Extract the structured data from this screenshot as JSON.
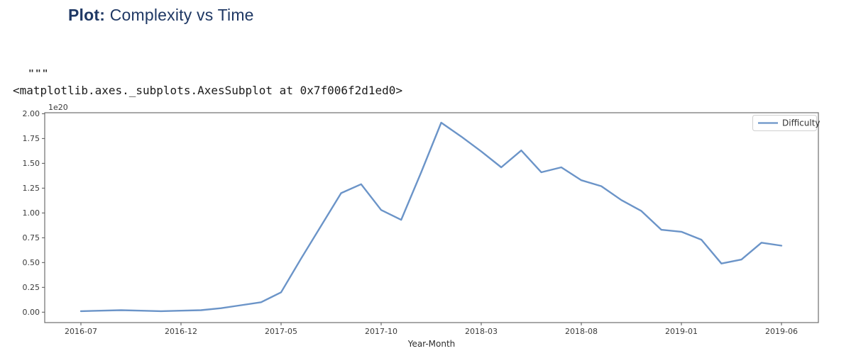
{
  "header": {
    "title_prefix": "Plot:",
    "title_rest": " Complexity vs Time",
    "title_color": "#1f3864"
  },
  "code": {
    "docstring_quotes": "\"\"\"",
    "repr_line": "<matplotlib.axes._subplots.AxesSubplot at 0x7f006f2d1ed0>"
  },
  "chart_data": {
    "type": "line",
    "title": "",
    "xlabel": "Year-Month",
    "ylabel": "",
    "offset_label": "1e20",
    "grid": false,
    "legend": {
      "entries": [
        "Difficulty"
      ],
      "position": "upper right"
    },
    "line_color": "#6b94c8",
    "ylim": [
      -0.105,
      2.01
    ],
    "y_tick_values": [
      0.0,
      0.25,
      0.5,
      0.75,
      1.0,
      1.25,
      1.5,
      1.75,
      2.0
    ],
    "y_tick_labels": [
      "0.00",
      "0.25",
      "0.50",
      "0.75",
      "1.00",
      "1.25",
      "1.50",
      "1.75",
      "2.00"
    ],
    "x_tick_labels": [
      "2016-07",
      "2016-12",
      "2017-05",
      "2017-10",
      "2018-03",
      "2018-08",
      "2019-01",
      "2019-06"
    ],
    "x_tick_every": 5,
    "x": [
      "2016-07",
      "2016-08",
      "2016-09",
      "2016-10",
      "2016-11",
      "2016-12",
      "2017-01",
      "2017-02",
      "2017-03",
      "2017-04",
      "2017-05",
      "2017-06",
      "2017-07",
      "2017-08",
      "2017-09",
      "2017-10",
      "2017-11",
      "2017-12",
      "2018-01",
      "2018-02",
      "2018-03",
      "2018-04",
      "2018-05",
      "2018-06",
      "2018-07",
      "2018-08",
      "2018-09",
      "2018-10",
      "2018-11",
      "2018-12",
      "2019-01",
      "2019-02",
      "2019-03",
      "2019-04",
      "2019-05",
      "2019-06"
    ],
    "series": [
      {
        "name": "Difficulty",
        "values": [
          0.01,
          0.015,
          0.02,
          0.015,
          0.01,
          0.015,
          0.02,
          0.04,
          0.07,
          0.1,
          0.2,
          0.54,
          0.87,
          1.2,
          1.29,
          1.03,
          0.93,
          1.41,
          1.91,
          1.77,
          1.62,
          1.46,
          1.63,
          1.41,
          1.46,
          1.33,
          1.27,
          1.13,
          1.02,
          0.83,
          0.81,
          0.73,
          0.49,
          0.53,
          0.7,
          0.67
        ]
      }
    ]
  }
}
